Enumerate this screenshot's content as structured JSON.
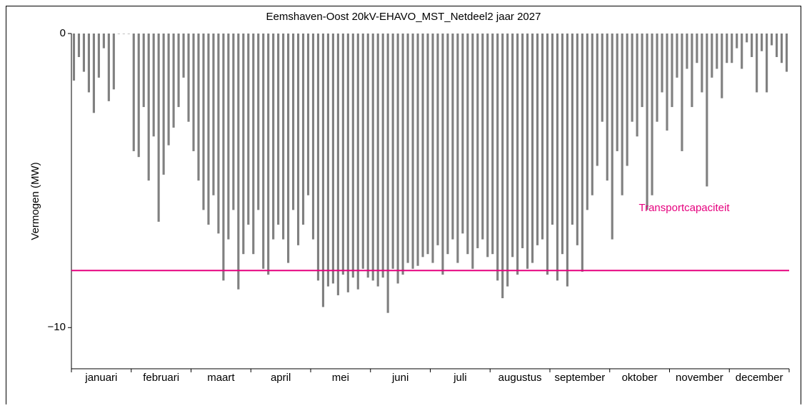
{
  "chart_data": {
    "type": "bar",
    "title": "Eemshaven-Oost 20kV-EHAVO_MST_Netdeel2 jaar 2027",
    "ylabel": "Vermogen (MW)",
    "categories": [
      "januari",
      "februari",
      "maart",
      "april",
      "mei",
      "juni",
      "juli",
      "augustus",
      "september",
      "oktober",
      "november",
      "december"
    ],
    "values": [
      [
        -1.6,
        -0.8,
        -1.3,
        -2.0,
        -2.7,
        -1.5,
        -0.5,
        -2.3,
        -1.9,
        0,
        0,
        0
      ],
      [
        -4.0,
        -4.2,
        -2.5,
        -5.0,
        -3.5,
        -6.4,
        -4.8,
        -3.8,
        -3.2,
        -2.5,
        -1.5,
        -3.0
      ],
      [
        -4.0,
        -5.0,
        -6.0,
        -6.5,
        -5.5,
        -6.8,
        -8.4,
        -7.0,
        -6.0,
        -8.7,
        -7.5,
        -6.5
      ],
      [
        -7.5,
        -6.0,
        -8.0,
        -8.2,
        -7.0,
        -6.5,
        -7.0,
        -7.8,
        -6.0,
        -7.2,
        -6.5,
        -5.5
      ],
      [
        -7.0,
        -8.4,
        -9.3,
        -8.6,
        -8.5,
        -8.9,
        -8.2,
        -8.8,
        -8.3,
        -8.7,
        -8.0,
        -8.3
      ],
      [
        -8.4,
        -8.6,
        -8.3,
        -9.5,
        -8.0,
        -8.5,
        -8.2,
        -7.8,
        -8.0,
        -7.9,
        -7.6,
        -7.5
      ],
      [
        -7.8,
        -7.2,
        -8.2,
        -7.5,
        -7.0,
        -7.8,
        -6.8,
        -7.5,
        -8.0,
        -7.3,
        -7.0,
        -7.6
      ],
      [
        -7.5,
        -8.4,
        -9.0,
        -8.6,
        -7.6,
        -8.2,
        -7.3,
        -8.0,
        -7.8,
        -7.2,
        -7.0,
        -8.2
      ],
      [
        -6.5,
        -8.4,
        -7.5,
        -8.6,
        -6.5,
        -7.2,
        -8.1,
        -6.0,
        -5.5,
        -4.5,
        -3.0,
        -5.0
      ],
      [
        -7.0,
        -4.0,
        -5.5,
        -4.5,
        -3.0,
        -3.5,
        -2.5,
        -6.0,
        -5.5,
        -3.0,
        -2.0,
        -3.3
      ],
      [
        -2.5,
        -1.5,
        -4.0,
        -1.2,
        -2.5,
        -1.0,
        -2.0,
        -5.2,
        -1.5,
        -1.2,
        -2.2,
        -1.0
      ],
      [
        -1.0,
        -0.5,
        -1.2,
        -0.3,
        -0.8,
        -2.0,
        -0.6,
        -2.0,
        -0.4,
        -0.8,
        -1.0,
        -1.3
      ]
    ],
    "color": "#808080",
    "ylim": [
      -11.4,
      0
    ],
    "yticks": [
      0,
      {
        "value": -10,
        "label": "−10"
      }
    ],
    "capacity": {
      "label": "Transportcapaciteit",
      "value": -8.06,
      "color": "#e6007e"
    }
  }
}
